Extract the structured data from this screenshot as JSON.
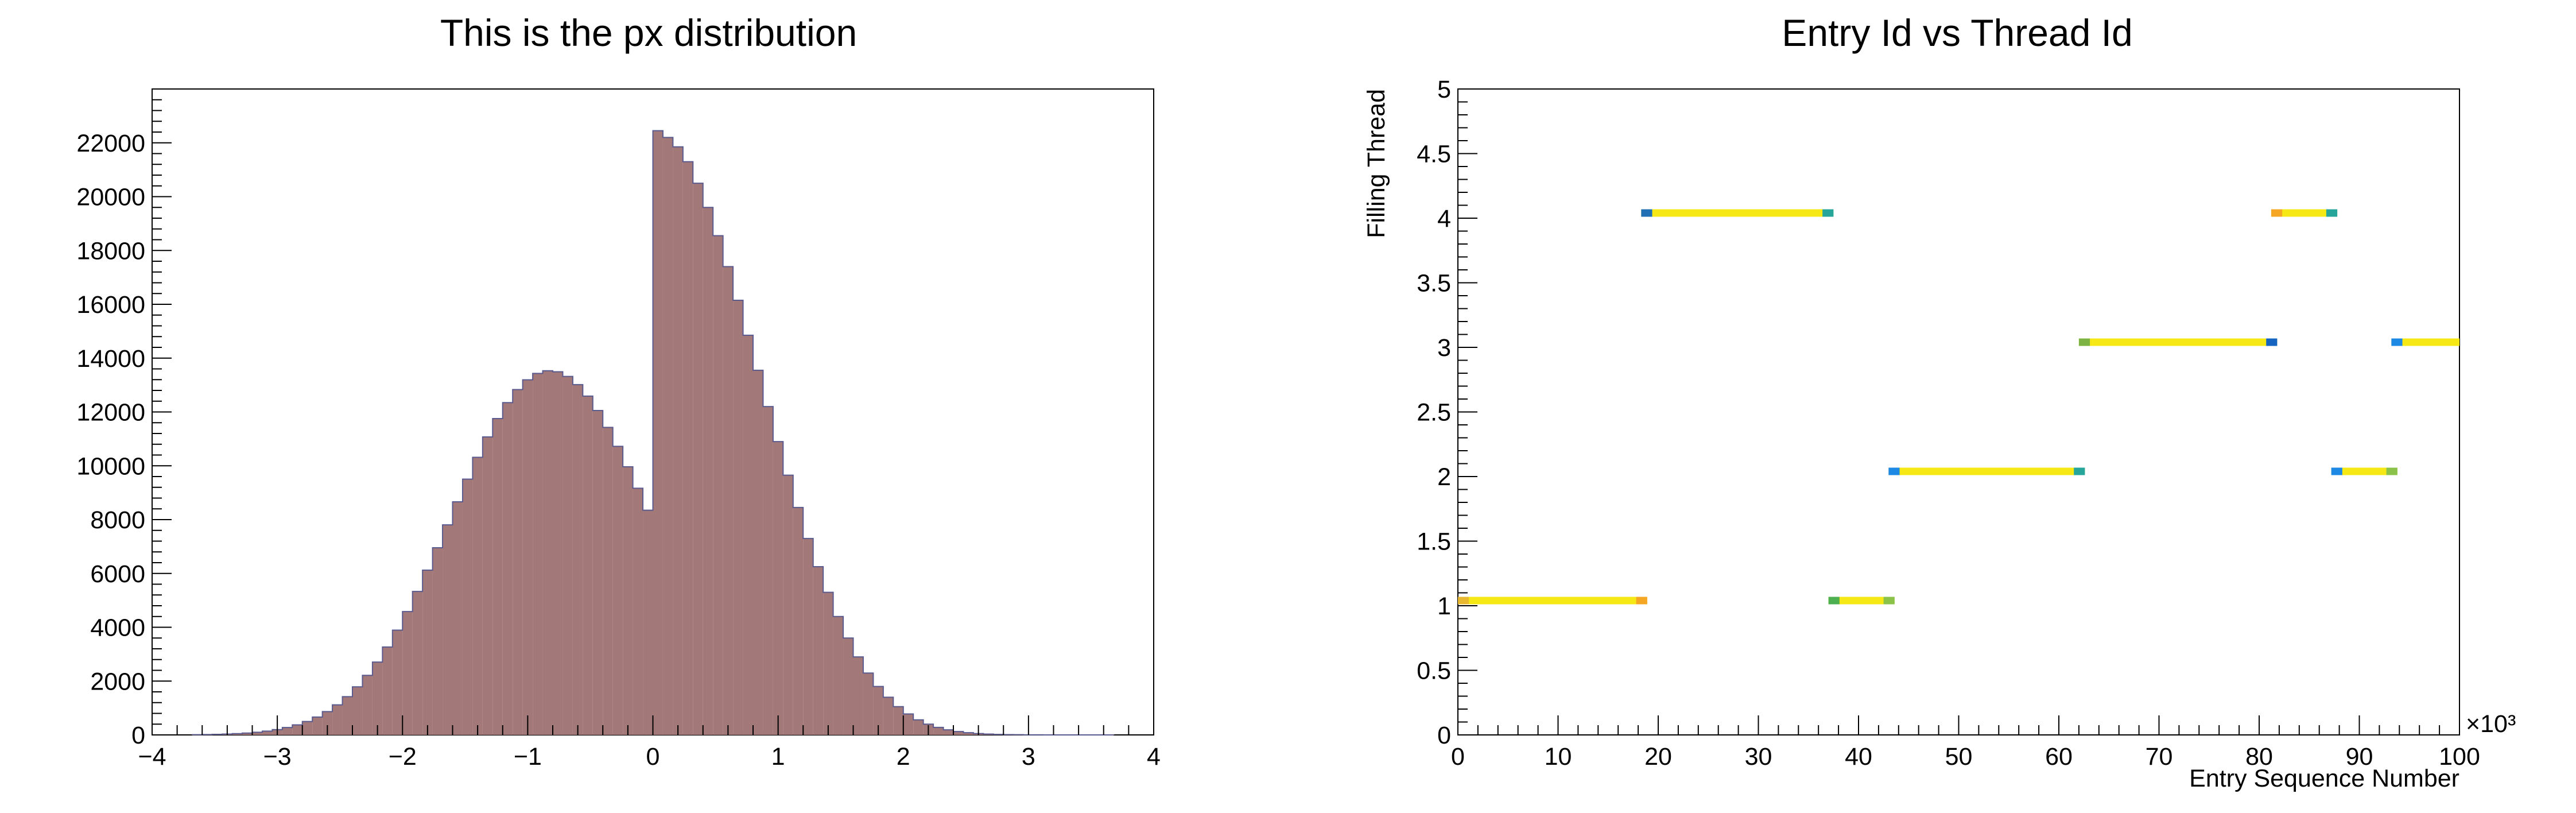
{
  "chart_data": [
    {
      "type": "bar",
      "title": "This is the px distribution",
      "xlabel": "",
      "ylabel": "",
      "xlim": [
        -4,
        4
      ],
      "ylim": [
        0,
        24000
      ],
      "x_ticks": [
        "−4",
        "−3",
        "−2",
        "−1",
        "0",
        "1",
        "2",
        "3",
        "4"
      ],
      "y_ticks": [
        "0",
        "2000",
        "4000",
        "6000",
        "8000",
        "10000",
        "12000",
        "14000",
        "16000",
        "18000",
        "20000",
        "22000"
      ],
      "bin_width": 0.08,
      "x": [
        -3.68,
        -3.6,
        -3.52,
        -3.44,
        -3.36,
        -3.28,
        -3.2,
        -3.12,
        -3.04,
        -2.96,
        -2.88,
        -2.8,
        -2.72,
        -2.64,
        -2.56,
        -2.48,
        -2.4,
        -2.32,
        -2.24,
        -2.16,
        -2.08,
        -2.0,
        -1.92,
        -1.84,
        -1.76,
        -1.68,
        -1.6,
        -1.52,
        -1.44,
        -1.36,
        -1.28,
        -1.2,
        -1.12,
        -1.04,
        -0.96,
        -0.88,
        -0.8,
        -0.72,
        -0.64,
        -0.56,
        -0.48,
        -0.4,
        -0.32,
        -0.24,
        -0.16,
        -0.08,
        0.0,
        0.08,
        0.16,
        0.24,
        0.32,
        0.4,
        0.48,
        0.56,
        0.64,
        0.72,
        0.8,
        0.88,
        0.96,
        1.04,
        1.12,
        1.2,
        1.28,
        1.36,
        1.44,
        1.52,
        1.6,
        1.68,
        1.76,
        1.84,
        1.92,
        2.0,
        2.08,
        2.16,
        2.24,
        2.32,
        2.4,
        2.48,
        2.56,
        2.64,
        2.72,
        2.8,
        2.88,
        2.96,
        3.04,
        3.12,
        3.2,
        3.28,
        3.36,
        3.44,
        3.52,
        3.6
      ],
      "values": [
        9,
        14,
        21,
        32,
        47,
        69,
        99,
        141,
        198,
        274,
        373,
        500,
        663,
        866,
        1117,
        1422,
        1786,
        2213,
        2707,
        3267,
        3894,
        4584,
        5330,
        6124,
        6954,
        7806,
        8662,
        9505,
        10315,
        11071,
        11754,
        12346,
        12831,
        13196,
        13432,
        13532,
        13494,
        13320,
        13015,
        12589,
        12054,
        11427,
        10723,
        9963,
        9165,
        8350,
        22450,
        22200,
        21850,
        21300,
        20500,
        19600,
        18550,
        17400,
        16150,
        14850,
        13550,
        12200,
        10900,
        9650,
        8450,
        7300,
        6250,
        5300,
        4400,
        3600,
        2900,
        2300,
        1800,
        1400,
        1050,
        780,
        560,
        400,
        280,
        190,
        125,
        82,
        52,
        32,
        20,
        12,
        7,
        4,
        2,
        1,
        1,
        1,
        1,
        1,
        1,
        1
      ],
      "bar_color": "#a37878",
      "edge_color": "#5a5a8e"
    },
    {
      "type": "heatmap",
      "title": "Entry Id vs Thread Id",
      "xlabel": "Entry Sequence Number",
      "ylabel": "Filling Thread",
      "xlim": [
        0,
        100
      ],
      "ylim": [
        0,
        5
      ],
      "x_ticks": [
        "0",
        "10",
        "20",
        "30",
        "40",
        "50",
        "60",
        "70",
        "80",
        "90",
        "100"
      ],
      "x_multiplier": "×10³",
      "y_ticks": [
        "0",
        "0.5",
        "1",
        "1.5",
        "2",
        "2.5",
        "3",
        "3.5",
        "4",
        "4.5",
        "5"
      ],
      "segments": [
        {
          "thread": 1,
          "start": 0,
          "end": 18.9,
          "start_color": "#e8b830",
          "end_color": "#f5a623",
          "fill_color": "#f5e814"
        },
        {
          "thread": 4,
          "start": 18.3,
          "end": 37.5,
          "start_color": "#1f6fb4",
          "end_color": "#26a69a",
          "fill_color": "#f5e814"
        },
        {
          "thread": 1,
          "start": 37.0,
          "end": 43.6,
          "start_color": "#4caf50",
          "end_color": "#8bc34a",
          "fill_color": "#f5e814"
        },
        {
          "thread": 2,
          "start": 43.0,
          "end": 62.6,
          "start_color": "#1e88e5",
          "end_color": "#26a69a",
          "fill_color": "#f5e814"
        },
        {
          "thread": 3,
          "start": 62.0,
          "end": 81.8,
          "start_color": "#7cb342",
          "end_color": "#1565c0",
          "fill_color": "#f5e814"
        },
        {
          "thread": 4,
          "start": 81.2,
          "end": 87.8,
          "start_color": "#f5a623",
          "end_color": "#26a69a",
          "fill_color": "#f5e814"
        },
        {
          "thread": 2,
          "start": 87.2,
          "end": 93.8,
          "start_color": "#1e88e5",
          "end_color": "#8bc34a",
          "fill_color": "#f5e814"
        },
        {
          "thread": 3,
          "start": 93.2,
          "end": 100,
          "start_color": "#1e88e5",
          "end_color": "#f5e814",
          "fill_color": "#f5e814"
        }
      ]
    }
  ]
}
